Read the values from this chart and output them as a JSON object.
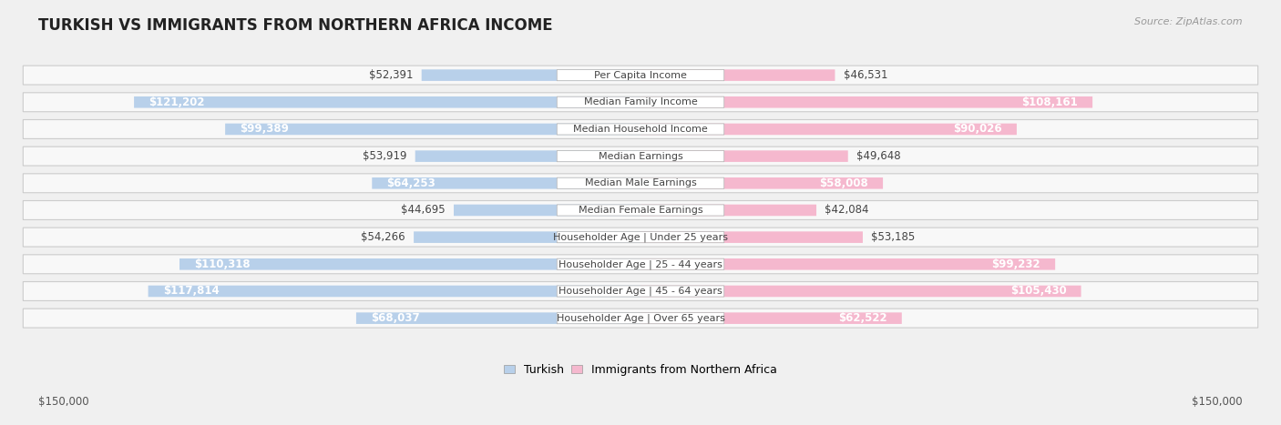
{
  "title": "TURKISH VS IMMIGRANTS FROM NORTHERN AFRICA INCOME",
  "source": "Source: ZipAtlas.com",
  "categories": [
    "Per Capita Income",
    "Median Family Income",
    "Median Household Income",
    "Median Earnings",
    "Median Male Earnings",
    "Median Female Earnings",
    "Householder Age | Under 25 years",
    "Householder Age | 25 - 44 years",
    "Householder Age | 45 - 64 years",
    "Householder Age | Over 65 years"
  ],
  "turkish_values": [
    52391,
    121202,
    99389,
    53919,
    64253,
    44695,
    54266,
    110318,
    117814,
    68037
  ],
  "immigrant_values": [
    46531,
    108161,
    90026,
    49648,
    58008,
    42084,
    53185,
    99232,
    105430,
    62522
  ],
  "turkish_labels": [
    "$52,391",
    "$121,202",
    "$99,389",
    "$53,919",
    "$64,253",
    "$44,695",
    "$54,266",
    "$110,318",
    "$117,814",
    "$68,037"
  ],
  "immigrant_labels": [
    "$46,531",
    "$108,161",
    "$90,026",
    "$49,648",
    "$58,008",
    "$42,084",
    "$53,185",
    "$99,232",
    "$105,430",
    "$62,522"
  ],
  "turkish_color_light": "#b8d0ea",
  "turkish_color_dark": "#6ca0d0",
  "immigrant_color_light": "#f5b8ce",
  "immigrant_color_dark": "#e8789f",
  "max_value": 150000,
  "xlabel_left": "$150,000",
  "xlabel_right": "$150,000",
  "legend_turkish": "Turkish",
  "legend_immigrant": "Immigrants from Northern Africa",
  "bg_color": "#f0f0f0",
  "label_fontsize": 8.5,
  "title_fontsize": 12,
  "source_fontsize": 8,
  "inside_label_threshold": 55000
}
